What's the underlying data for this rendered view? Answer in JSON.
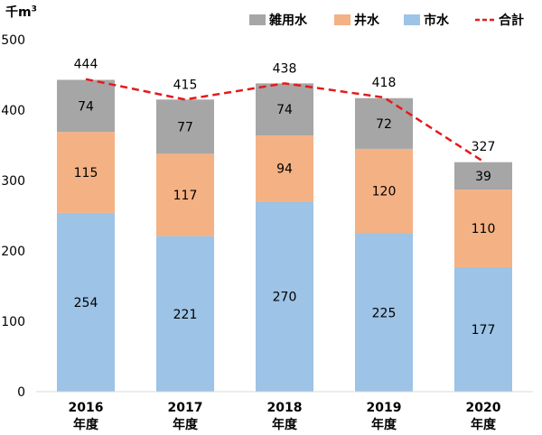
{
  "chart_data": {
    "type": "bar",
    "stacked": true,
    "unit": "千m",
    "unit_superscript": "3",
    "categories": [
      [
        "2016",
        "年度"
      ],
      [
        "2017",
        "年度"
      ],
      [
        "2018",
        "年度"
      ],
      [
        "2019",
        "年度"
      ],
      [
        "2020",
        "年度"
      ]
    ],
    "series": [
      {
        "name": "市水",
        "color": "#9dc3e6",
        "values": [
          254,
          221,
          270,
          225,
          177
        ]
      },
      {
        "name": "井水",
        "color": "#f4b183",
        "values": [
          115,
          117,
          94,
          120,
          110
        ]
      },
      {
        "name": "雑用水",
        "color": "#a6a6a6",
        "values": [
          74,
          77,
          74,
          72,
          39
        ]
      }
    ],
    "total": {
      "name": "合計",
      "color": "#e31a1c",
      "style": "dashed",
      "values": [
        444,
        415,
        438,
        418,
        327
      ]
    },
    "legend_order": [
      "雑用水",
      "井水",
      "市水",
      "合計"
    ],
    "legend_position": "top-right",
    "ylim": [
      0,
      500
    ],
    "yticks": [
      0,
      100,
      200,
      300,
      400,
      500
    ],
    "grid": false
  }
}
